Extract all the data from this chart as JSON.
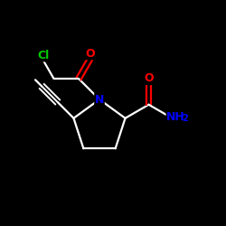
{
  "background_color": "#000000",
  "bond_color": "#ffffff",
  "N_color": "#0000ff",
  "O_color": "#ff0000",
  "Cl_color": "#00cc00",
  "figsize": [
    2.5,
    2.5
  ],
  "dpi": 100,
  "xlim": [
    0,
    1
  ],
  "ylim": [
    0,
    1
  ]
}
